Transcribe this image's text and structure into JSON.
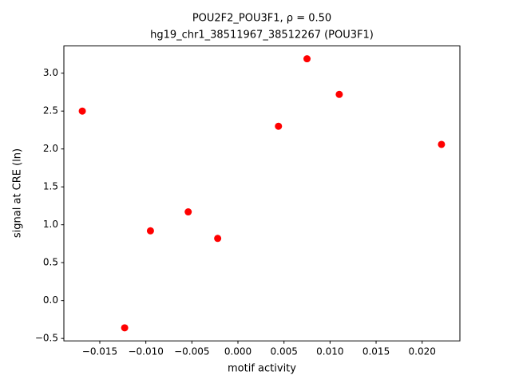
{
  "chart_data": {
    "type": "scatter",
    "title": "POU2F2_POU3F1, ρ = 0.50",
    "subtitle": "hg19_chr1_38511967_38512267 (POU3F1)",
    "x_label": "motif activity",
    "y_label": "signal at CRE (ln)",
    "color": "#ff0000",
    "x": [
      -0.0169,
      -0.0123,
      -0.0095,
      -0.0054,
      -0.0022,
      0.0044,
      0.0075,
      0.011,
      0.0221
    ],
    "values": [
      2.5,
      -0.36,
      0.92,
      1.17,
      0.82,
      2.3,
      3.19,
      2.72,
      2.06
    ],
    "xlim": [
      -0.0189,
      0.0241
    ],
    "ylim": [
      -0.532,
      3.359
    ],
    "xticks": [
      {
        "value": -0.015,
        "label": "−0.015"
      },
      {
        "value": -0.01,
        "label": "−0.010"
      },
      {
        "value": -0.005,
        "label": "−0.005"
      },
      {
        "value": 0,
        "label": "0.000"
      },
      {
        "value": 0.005,
        "label": "0.005"
      },
      {
        "value": 0.01,
        "label": "0.010"
      },
      {
        "value": 0.015,
        "label": "0.015"
      },
      {
        "value": 0.02,
        "label": "0.020"
      }
    ],
    "yticks": [
      {
        "value": -0.5,
        "label": "−0.5"
      },
      {
        "value": 0,
        "label": "0.0"
      },
      {
        "value": 0.5,
        "label": "0.5"
      },
      {
        "value": 1,
        "label": "1.0"
      },
      {
        "value": 1.5,
        "label": "1.5"
      },
      {
        "value": 2,
        "label": "2.0"
      },
      {
        "value": 2.5,
        "label": "2.5"
      },
      {
        "value": 3,
        "label": "3.0"
      }
    ],
    "grid": false
  }
}
